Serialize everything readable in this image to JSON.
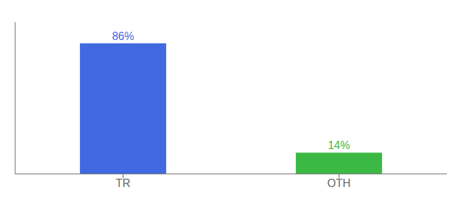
{
  "chart_data": {
    "type": "bar",
    "categories": [
      "TR",
      "OTH"
    ],
    "values": [
      86,
      14
    ],
    "value_labels": [
      "86%",
      "14%"
    ],
    "colors": [
      "#4169E1",
      "#3CB944"
    ],
    "ylim": [
      0,
      100
    ],
    "data_labels": true,
    "tick_labels": "x"
  }
}
